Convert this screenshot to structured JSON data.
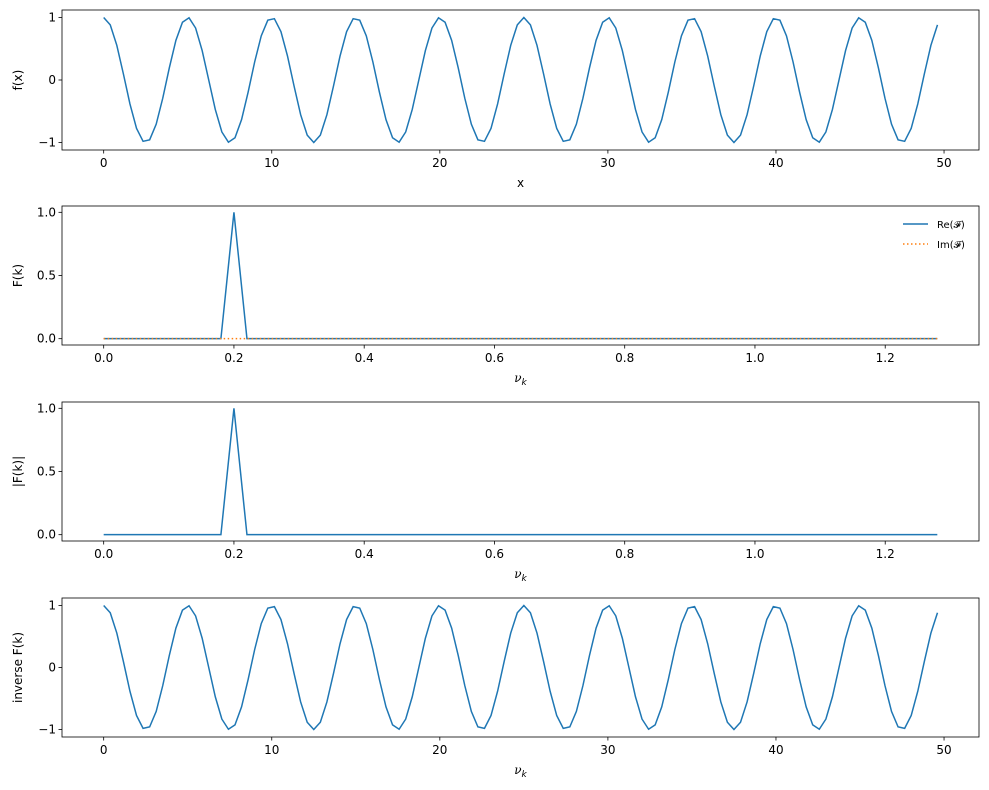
{
  "chart_data": [
    {
      "type": "line",
      "xlabel": "x",
      "ylabel": "f(x)",
      "xlim": [
        -2.48,
        52.08
      ],
      "ylim": [
        -1.12,
        1.12
      ],
      "xticks": [
        "0",
        "10",
        "20",
        "30",
        "40",
        "50"
      ],
      "yticks": [
        "−1",
        "0",
        "1"
      ],
      "series": [
        {
          "expression": "cos(2π·0.2·x)",
          "x_start": 0,
          "x_stop": 49.609375,
          "n_points": 128,
          "style": "solid",
          "color": "#1f77b4"
        }
      ]
    },
    {
      "type": "line",
      "xlabel": "νk",
      "ylabel": "F(k)",
      "xlim": [
        -0.064,
        1.344
      ],
      "ylim": [
        -0.05,
        1.05
      ],
      "xticks": [
        "0.0",
        "0.2",
        "0.4",
        "0.6",
        "0.8",
        "1.0",
        "1.2"
      ],
      "yticks": [
        "0.0",
        "0.5",
        "1.0"
      ],
      "legend": "top-right",
      "series": [
        {
          "name": "Re(𝓕)",
          "nu_start": 0,
          "nu_stop": 1.28,
          "n_points": 65,
          "peaks": [
            {
              "nu": 0.2,
              "value": 1.0
            }
          ],
          "baseline": 0,
          "style": "solid",
          "color": "#1f77b4"
        },
        {
          "name": "Im(𝓕)",
          "nu_start": 0,
          "nu_stop": 1.28,
          "n_points": 65,
          "peaks": [],
          "baseline": 0,
          "style": "dotted",
          "color": "#ff7f0e"
        }
      ]
    },
    {
      "type": "line",
      "xlabel": "νk",
      "ylabel": "|F(k)|",
      "xlim": [
        -0.064,
        1.344
      ],
      "ylim": [
        -0.05,
        1.05
      ],
      "xticks": [
        "0.0",
        "0.2",
        "0.4",
        "0.6",
        "0.8",
        "1.0",
        "1.2"
      ],
      "yticks": [
        "0.0",
        "0.5",
        "1.0"
      ],
      "series": [
        {
          "nu_start": 0,
          "nu_stop": 1.28,
          "n_points": 65,
          "peaks": [
            {
              "nu": 0.2,
              "value": 1.0
            }
          ],
          "baseline": 0,
          "style": "solid",
          "color": "#1f77b4"
        }
      ]
    },
    {
      "type": "line",
      "xlabel": "νk",
      "ylabel": "inverse F(k)",
      "xlim": [
        -2.48,
        52.08
      ],
      "ylim": [
        -1.12,
        1.12
      ],
      "xticks": [
        "0",
        "10",
        "20",
        "30",
        "40",
        "50"
      ],
      "yticks": [
        "−1",
        "0",
        "1"
      ],
      "series": [
        {
          "expression": "cos(2π·0.2·x)",
          "x_start": 0,
          "x_stop": 49.609375,
          "n_points": 128,
          "style": "solid",
          "color": "#1f77b4"
        }
      ]
    }
  ]
}
